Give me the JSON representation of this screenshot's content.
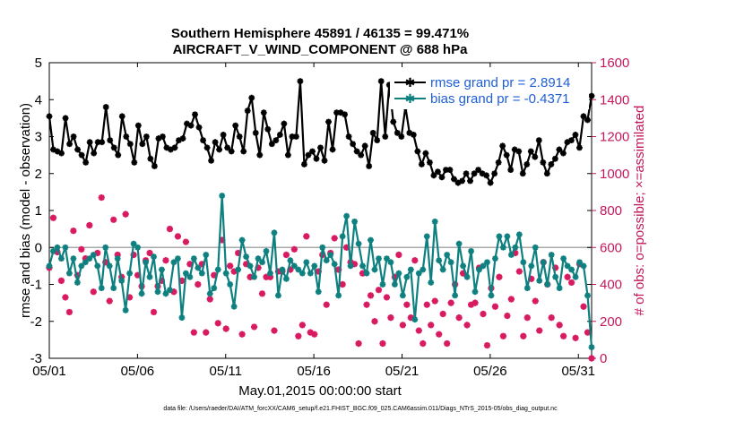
{
  "chart_data": {
    "type": "line",
    "title": "Southern Hemisphere 45891 / 46135 = 99.471%",
    "subtitle": "AIRCRAFT_V_WIND_COMPONENT @ 688 hPa",
    "xlabel": "May.01,2015 00:00:00 start",
    "ylabel": "rmse and bias (model - observation)",
    "ylabel_right": "# of obs: o=possible; ×=assimilated",
    "footnote": "data file: /Users/raeder/DAI/ATM_forcXX/CAM6_setup/f.e21.FHIST_BGC.f09_025.CAM6assim.011/Diags_NTrS_2015-05/obs_diag_output.nc",
    "x_ticks": [
      "05/01",
      "05/06",
      "05/11",
      "05/16",
      "05/21",
      "05/26",
      "05/31"
    ],
    "x_tick_days": [
      1,
      6,
      11,
      16,
      21,
      26,
      31
    ],
    "xlim": [
      1,
      31.75
    ],
    "ylim": [
      -3,
      5
    ],
    "y_ticks": [
      "-3",
      "-2",
      "-1",
      "0",
      "1",
      "2",
      "3",
      "4",
      "5"
    ],
    "ylim_right": [
      0,
      1600
    ],
    "y_ticks_right": [
      "0",
      "200",
      "400",
      "600",
      "800",
      "1000",
      "1200",
      "1400",
      "1600"
    ],
    "grid": false,
    "legend_position": "top-right",
    "series": [
      {
        "name": "rmse grand pr = 2.8914",
        "color": "#000000",
        "marker": "star",
        "axis": "left",
        "values": [
          3.55,
          2.65,
          2.6,
          2.55,
          3.5,
          2.8,
          3.0,
          2.65,
          2.5,
          2.3,
          2.85,
          2.55,
          2.85,
          2.85,
          3.8,
          2.9,
          2.7,
          2.5,
          3.55,
          3.0,
          2.8,
          2.3,
          3.3,
          2.8,
          3.0,
          2.4,
          2.2,
          2.95,
          3.0,
          2.7,
          2.65,
          2.7,
          2.9,
          2.95,
          3.35,
          3.3,
          3.6,
          3.25,
          2.9,
          2.7,
          2.35,
          2.85,
          2.65,
          3.05,
          2.7,
          2.6,
          3.3,
          3.0,
          2.6,
          3.7,
          4.05,
          3.1,
          2.5,
          3.65,
          3.2,
          2.8,
          2.9,
          3.05,
          3.35,
          2.5,
          3.0,
          3.0,
          4.5,
          2.25,
          2.5,
          2.6,
          2.4,
          2.7,
          2.35,
          3.4,
          2.65,
          3.65,
          3.65,
          3.6,
          3.0,
          2.8,
          2.6,
          2.5,
          2.75,
          2.2,
          3.1,
          2.9,
          4.5,
          3.0,
          4.4,
          3.4,
          3.1,
          3.0,
          3.8,
          3.1,
          3.05,
          2.6,
          2.25,
          2.55,
          2.3,
          1.95,
          2.05,
          1.9,
          2.1,
          2.1,
          1.85,
          1.75,
          1.8,
          2.0,
          1.8,
          2.0,
          2.1,
          2.0,
          1.95,
          1.75,
          2.0,
          2.3,
          2.75,
          2.5,
          2.1,
          2.65,
          2.6,
          2.0,
          2.25,
          2.6,
          2.45,
          2.9,
          2.3,
          2.0,
          2.25,
          2.4,
          2.65,
          2.55,
          2.85,
          2.9,
          3.05,
          2.7,
          3.55,
          3.45,
          4.1
        ]
      },
      {
        "name": "bias grand pr = -0.4371",
        "color": "#0e8080",
        "marker": "star",
        "axis": "left",
        "values": [
          -0.5,
          -0.1,
          0.0,
          -0.3,
          0.0,
          -0.7,
          -0.3,
          -0.95,
          -0.5,
          -0.4,
          -0.3,
          -0.2,
          -0.5,
          -1.1,
          0.0,
          -0.5,
          -1.1,
          -0.3,
          -0.9,
          -1.7,
          -0.7,
          0.1,
          0.0,
          -1.25,
          -0.4,
          -0.8,
          -0.25,
          -1.2,
          -0.6,
          -1.25,
          -1.15,
          -0.4,
          -0.3,
          -1.9,
          -0.7,
          -0.8,
          -0.3,
          -0.55,
          -0.7,
          -0.2,
          -1.25,
          -1.1,
          -0.6,
          1.4,
          -0.7,
          -1.0,
          -1.6,
          -0.6,
          0.2,
          -0.25,
          -0.5,
          -0.8,
          -0.3,
          -0.4,
          -0.1,
          -0.7,
          0.4,
          -1.3,
          -0.6,
          -0.85,
          -0.35,
          -0.5,
          -0.6,
          -0.7,
          -0.4,
          -0.7,
          -0.5,
          -1.2,
          0.0,
          -0.35,
          -0.2,
          -0.45,
          -1.3,
          0.3,
          0.85,
          -0.5,
          0.7,
          0.1,
          -0.5,
          -0.7,
          0.2,
          -0.6,
          -0.3,
          -1.0,
          -0.3,
          -0.4,
          -1.0,
          -0.7,
          -1.3,
          -0.8,
          -0.6,
          -1.95,
          -0.7,
          -0.6,
          0.3,
          -0.95,
          0.7,
          -0.35,
          -0.6,
          -0.2,
          -0.4,
          -1.3,
          0.1,
          -0.5,
          -0.8,
          -0.1,
          -1.2,
          -0.6,
          -0.5,
          -0.4,
          -1.3,
          -0.3,
          0.3,
          0.0,
          0.3,
          -0.2,
          0.0,
          0.35,
          -0.4,
          -1.1,
          -0.5,
          0.0,
          -0.9,
          -0.4,
          -1.0,
          -0.2,
          -0.8,
          -1.1,
          -0.3,
          -0.5,
          -0.6,
          -0.8,
          -0.4,
          -0.5,
          -1.3,
          -2.7
        ]
      },
      {
        "name": "# of obs assimilated",
        "color": "#d81b60",
        "marker": "x",
        "axis": "right",
        "values": [
          490,
          760,
          575,
          420,
          330,
          250,
          690,
          450,
          590,
          540,
          720,
          360,
          570,
          870,
          520,
          310,
          750,
          560,
          440,
          780,
          330,
          560,
          450,
          390,
          530,
          570,
          250,
          390,
          420,
          530,
          700,
          360,
          660,
          420,
          630,
          510,
          140,
          400,
          510,
          140,
          320,
          450,
          190,
          640,
          160,
          500,
          470,
          570,
          130,
          510,
          440,
          170,
          490,
          350,
          440,
          440,
          150,
          470,
          470,
          560,
          480,
          590,
          120,
          180,
          660,
          140,
          130,
          470,
          560,
          290,
          570,
          650,
          480,
          400,
          600,
          520,
          510,
          80,
          460,
          290,
          340,
          200,
          370,
          80,
          330,
          220,
          440,
          560,
          180,
          290,
          220,
          530,
          150,
          80,
          290,
          180,
          310,
          130,
          240,
          80,
          300,
          400,
          220,
          460,
          180,
          290,
          300,
          490,
          240,
          70,
          380,
          280,
          440,
          120,
          230,
          320,
          570,
          470,
          120,
          220,
          430,
          310,
          150,
          520,
          400,
          220,
          490,
          180,
          120,
          440,
          410,
          110,
          510,
          280,
          140,
          0
        ]
      }
    ]
  }
}
